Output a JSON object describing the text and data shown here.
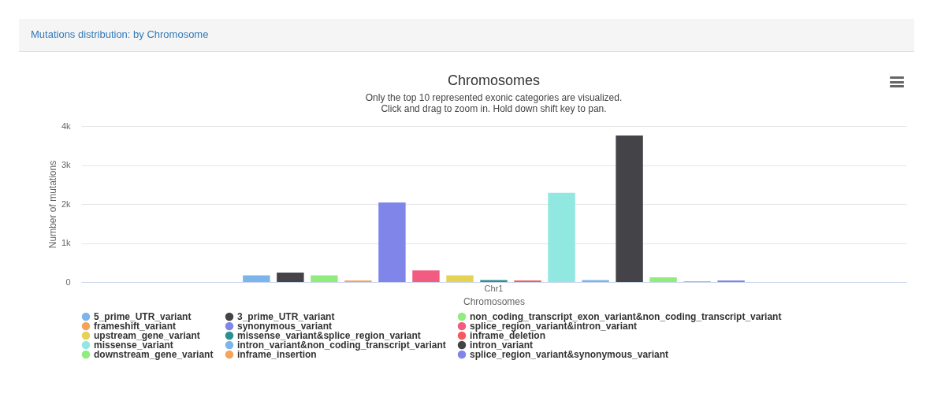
{
  "chart_data": {
    "type": "bar",
    "title": "Chromosomes",
    "subtitle": "Only the top 10 represented exonic categories are visualized.\nClick and drag to zoom in. Hold down shift key to pan.",
    "annotations": [
      "Mutations distribution: by Chromosome"
    ],
    "xlabel": "Chromosomes",
    "ylabel": "Number of mutations",
    "categories": [
      "Chr1"
    ],
    "ylim": [
      0,
      4000
    ],
    "yticks": [
      {
        "value": 0,
        "label": "0"
      },
      {
        "value": 1000,
        "label": "1k"
      },
      {
        "value": 2000,
        "label": "2k"
      },
      {
        "value": 3000,
        "label": "3k"
      },
      {
        "value": 4000,
        "label": "4k"
      }
    ],
    "grid": "y",
    "legend": "bottom",
    "series": [
      {
        "name": "5_prime_UTR_variant",
        "color": "#7cb5ec",
        "values": [
          170
        ]
      },
      {
        "name": "3_prime_UTR_variant",
        "color": "#434348",
        "values": [
          240
        ]
      },
      {
        "name": "non_coding_transcript_exon_variant&non_coding_transcript_variant",
        "color": "#90ed7d",
        "values": [
          170
        ]
      },
      {
        "name": "frameshift_variant",
        "color": "#f7a35c",
        "values": [
          40
        ]
      },
      {
        "name": "synonymous_variant",
        "color": "#8085e9",
        "values": [
          2040
        ]
      },
      {
        "name": "splice_region_variant&intron_variant",
        "color": "#f15c80",
        "values": [
          300
        ]
      },
      {
        "name": "upstream_gene_variant",
        "color": "#e4d354",
        "values": [
          170
        ]
      },
      {
        "name": "missense_variant&splice_region_variant",
        "color": "#2b908f",
        "values": [
          50
        ]
      },
      {
        "name": "inframe_deletion",
        "color": "#f45b5b",
        "values": [
          40
        ]
      },
      {
        "name": "missense_variant",
        "color": "#91e8e1",
        "values": [
          2290
        ]
      },
      {
        "name": "intron_variant&non_coding_transcript_variant",
        "color": "#7cb5ec",
        "values": [
          50
        ]
      },
      {
        "name": "intron_variant",
        "color": "#434348",
        "values": [
          3760
        ]
      },
      {
        "name": "downstream_gene_variant",
        "color": "#90ed7d",
        "values": [
          120
        ]
      },
      {
        "name": "inframe_insertion",
        "color": "#f7a35c",
        "values": [
          20
        ]
      },
      {
        "name": "splice_region_variant&synonymous_variant",
        "color": "#8085e9",
        "values": [
          40
        ]
      }
    ]
  }
}
